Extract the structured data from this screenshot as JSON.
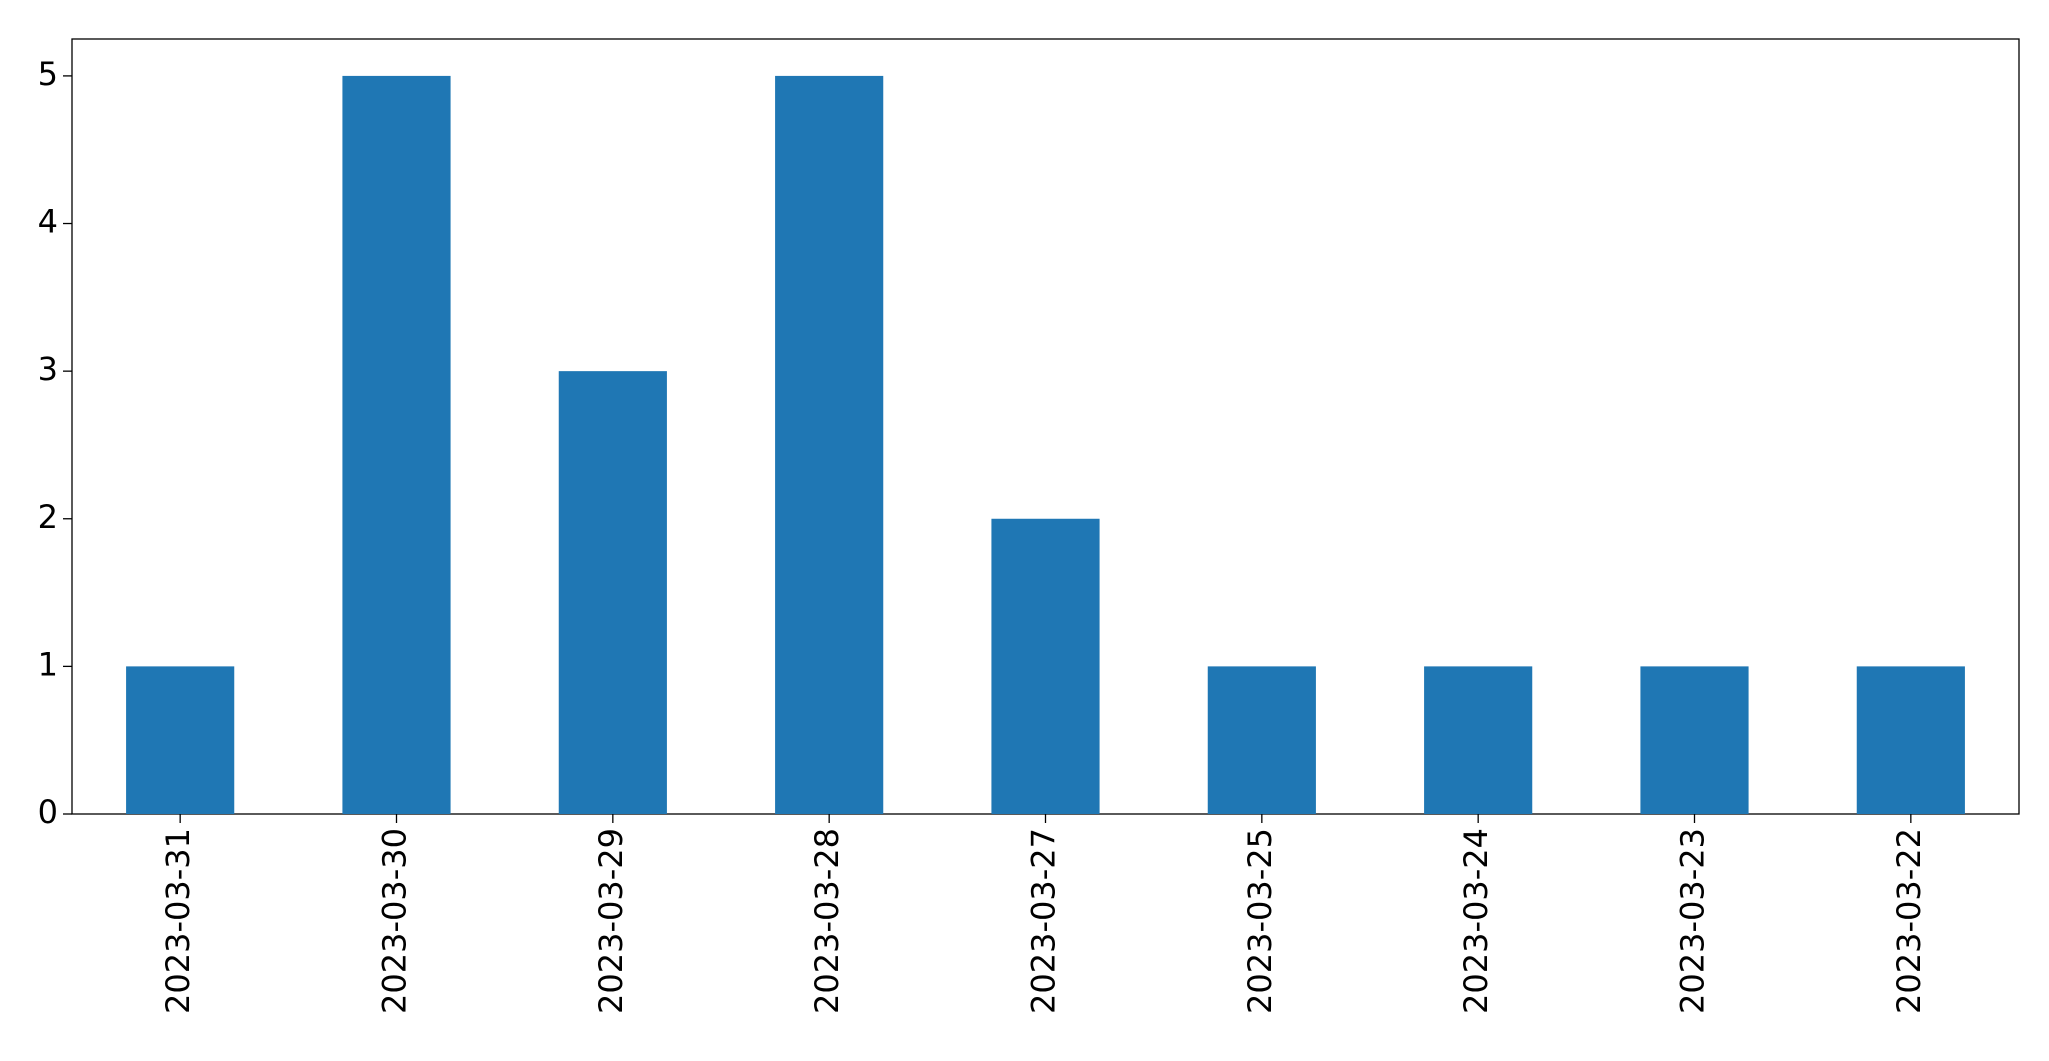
{
  "chart_data": {
    "type": "bar",
    "categories": [
      "2023-03-31",
      "2023-03-30",
      "2023-03-29",
      "2023-03-28",
      "2023-03-27",
      "2023-03-25",
      "2023-03-24",
      "2023-03-23",
      "2023-03-22"
    ],
    "values": [
      1,
      5,
      3,
      5,
      2,
      1,
      1,
      1,
      1
    ],
    "color": "#1f77b4",
    "ylim": [
      0,
      5.25
    ],
    "yticks": [
      0,
      1,
      2,
      3,
      4,
      5
    ],
    "grid": false
  }
}
